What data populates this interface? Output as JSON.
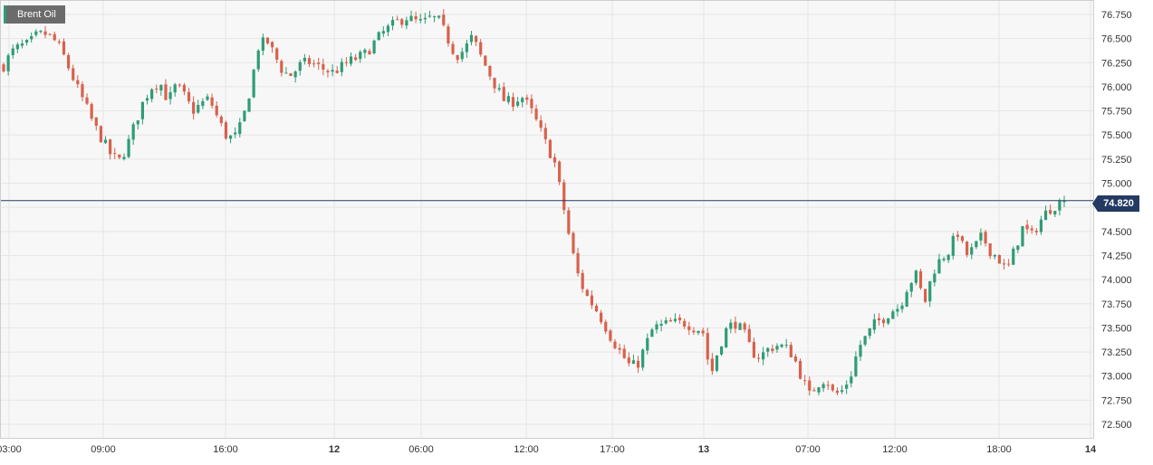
{
  "instrument": {
    "name": "Brent Oil"
  },
  "last_price": {
    "label": "74.820",
    "value": 74.82
  },
  "colors": {
    "up": "#2e9c74",
    "down": "#d9614c",
    "price_line": "#233a63",
    "grid": "#e6e6e6",
    "plot_bg": "#f7f7f7",
    "axis_text": "#333333"
  },
  "chart_data": {
    "type": "candlestick",
    "title": "",
    "ylim": [
      72.35,
      76.9
    ],
    "y_ticks": [
      "72.500",
      "72.750",
      "73.000",
      "73.250",
      "73.500",
      "73.750",
      "74.000",
      "74.250",
      "74.500",
      "74.750",
      "75.000",
      "75.250",
      "75.500",
      "75.750",
      "76.000",
      "76.250",
      "76.500",
      "76.750"
    ],
    "x_labels": [
      {
        "label": "03:00",
        "bold": false
      },
      {
        "label": "09:00",
        "bold": false
      },
      {
        "label": "16:00",
        "bold": false
      },
      {
        "label": "12",
        "bold": true
      },
      {
        "label": "06:00",
        "bold": false
      },
      {
        "label": "12:00",
        "bold": false
      },
      {
        "label": "17:00",
        "bold": false
      },
      {
        "label": "13",
        "bold": true
      },
      {
        "label": "07:00",
        "bold": false
      },
      {
        "label": "12:00",
        "bold": false
      },
      {
        "label": "18:00",
        "bold": false
      },
      {
        "label": "14",
        "bold": true
      }
    ],
    "path": [
      76.22,
      76.36,
      76.42,
      76.44,
      76.53,
      76.55,
      76.5,
      76.38,
      76.18,
      75.98,
      75.8,
      75.6,
      75.45,
      75.3,
      75.22,
      75.38,
      75.62,
      75.85,
      76.0,
      76.05,
      75.85,
      76.02,
      75.9,
      75.75,
      75.82,
      75.88,
      75.68,
      75.5,
      75.46,
      75.62,
      75.98,
      76.42,
      76.48,
      76.32,
      76.15,
      76.12,
      76.22,
      76.26,
      76.22,
      76.18,
      76.15,
      76.2,
      76.26,
      76.3,
      76.34,
      76.45,
      76.55,
      76.62,
      76.68,
      76.72,
      76.68,
      76.66,
      76.72,
      76.68,
      76.5,
      76.32,
      76.38,
      76.52,
      76.32,
      76.15,
      75.98,
      75.84,
      75.85,
      75.9,
      75.78,
      75.6,
      75.4,
      75.22,
      74.8,
      74.35,
      74.0,
      73.82,
      73.7,
      73.55,
      73.38,
      73.25,
      73.12,
      73.1,
      73.3,
      73.5,
      73.52,
      73.55,
      73.55,
      73.55,
      73.5,
      73.48,
      73.0,
      73.3,
      73.5,
      73.55,
      73.45,
      73.25,
      73.2,
      73.28,
      73.32,
      73.3,
      73.22,
      73.0,
      72.8,
      72.92,
      72.98,
      72.8,
      72.85,
      73.0,
      73.3,
      73.42,
      73.55,
      73.6,
      73.68,
      73.72,
      73.95,
      74.05,
      73.75,
      74.08,
      74.22,
      74.3,
      74.5,
      74.25,
      74.32,
      74.45,
      74.3,
      74.22,
      74.08,
      74.32,
      74.55,
      74.45,
      74.6,
      74.72,
      74.78,
      74.82
    ]
  }
}
